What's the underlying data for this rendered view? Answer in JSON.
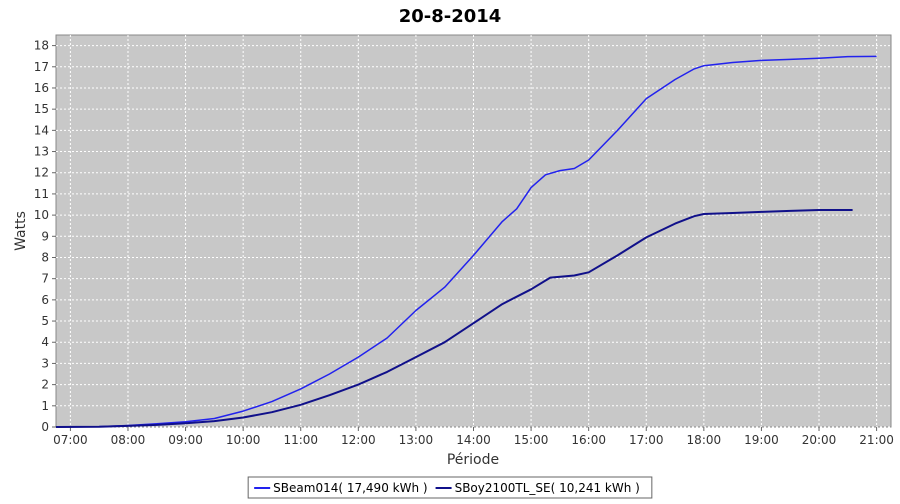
{
  "chart_data": {
    "type": "line",
    "title": "20-8-2014",
    "xlabel": "Période",
    "ylabel": "Watts",
    "xlim": [
      "06:45",
      "21:15"
    ],
    "ylim": [
      0,
      18.5
    ],
    "x_ticks": [
      "07:00",
      "08:00",
      "09:00",
      "10:00",
      "11:00",
      "12:00",
      "13:00",
      "14:00",
      "15:00",
      "16:00",
      "17:00",
      "18:00",
      "19:00",
      "20:00",
      "21:00"
    ],
    "y_ticks": [
      0,
      1,
      2,
      3,
      4,
      5,
      6,
      7,
      8,
      9,
      10,
      11,
      12,
      13,
      14,
      15,
      16,
      17,
      18
    ],
    "grid": true,
    "legend_placement": "bottom-center",
    "series": [
      {
        "name": "SBeam014( 17,490 kWh )",
        "color": "#2222ee",
        "points": [
          [
            "06:45",
            0
          ],
          [
            "07:30",
            0.02
          ],
          [
            "08:00",
            0.07
          ],
          [
            "08:30",
            0.15
          ],
          [
            "09:00",
            0.25
          ],
          [
            "09:30",
            0.4
          ],
          [
            "10:00",
            0.75
          ],
          [
            "10:30",
            1.2
          ],
          [
            "11:00",
            1.8
          ],
          [
            "11:30",
            2.5
          ],
          [
            "12:00",
            3.3
          ],
          [
            "12:30",
            4.2
          ],
          [
            "13:00",
            5.5
          ],
          [
            "13:30",
            6.6
          ],
          [
            "14:00",
            8.1
          ],
          [
            "14:30",
            9.7
          ],
          [
            "14:45",
            10.3
          ],
          [
            "15:00",
            11.3
          ],
          [
            "15:15",
            11.9
          ],
          [
            "15:30",
            12.1
          ],
          [
            "15:45",
            12.2
          ],
          [
            "16:00",
            12.6
          ],
          [
            "16:30",
            14.0
          ],
          [
            "17:00",
            15.5
          ],
          [
            "17:30",
            16.4
          ],
          [
            "17:50",
            16.9
          ],
          [
            "18:00",
            17.05
          ],
          [
            "18:30",
            17.2
          ],
          [
            "19:00",
            17.3
          ],
          [
            "19:30",
            17.35
          ],
          [
            "20:00",
            17.4
          ],
          [
            "20:30",
            17.48
          ],
          [
            "21:00",
            17.49
          ]
        ]
      },
      {
        "name": "SBoy2100TL_SE( 10,241 kWh )",
        "color": "#10108a",
        "points": [
          [
            "06:45",
            0
          ],
          [
            "07:30",
            0.01
          ],
          [
            "08:00",
            0.05
          ],
          [
            "08:30",
            0.1
          ],
          [
            "09:00",
            0.18
          ],
          [
            "09:30",
            0.28
          ],
          [
            "10:00",
            0.45
          ],
          [
            "10:30",
            0.7
          ],
          [
            "11:00",
            1.05
          ],
          [
            "11:30",
            1.5
          ],
          [
            "12:00",
            2.0
          ],
          [
            "12:30",
            2.6
          ],
          [
            "13:00",
            3.3
          ],
          [
            "13:30",
            4.0
          ],
          [
            "14:00",
            4.9
          ],
          [
            "14:30",
            5.8
          ],
          [
            "15:00",
            6.5
          ],
          [
            "15:20",
            7.05
          ],
          [
            "15:45",
            7.15
          ],
          [
            "16:00",
            7.3
          ],
          [
            "16:30",
            8.1
          ],
          [
            "17:00",
            8.95
          ],
          [
            "17:30",
            9.6
          ],
          [
            "17:50",
            9.95
          ],
          [
            "18:00",
            10.05
          ],
          [
            "18:30",
            10.1
          ],
          [
            "19:00",
            10.15
          ],
          [
            "19:30",
            10.2
          ],
          [
            "20:00",
            10.24
          ],
          [
            "20:35",
            10.24
          ]
        ]
      }
    ]
  }
}
